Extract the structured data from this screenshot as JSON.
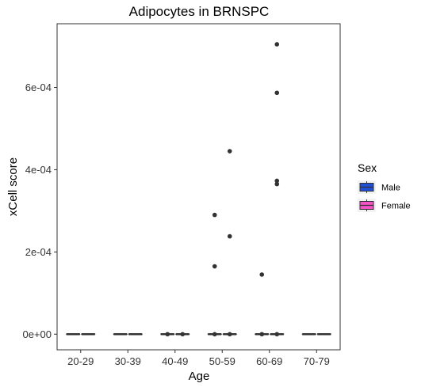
{
  "chart_data": {
    "type": "box",
    "title": "Adipocytes in BRNSPC",
    "xlabel": "Age",
    "ylabel": "xCell score",
    "categories": [
      "20-29",
      "30-39",
      "40-49",
      "50-59",
      "60-69",
      "70-79"
    ],
    "ylim": [
      -3.8e-05,
      0.000755
    ],
    "yticks": [
      {
        "value": 0,
        "label": "0e+00"
      },
      {
        "value": 0.0002,
        "label": "2e-04"
      },
      {
        "value": 0.0004,
        "label": "4e-04"
      },
      {
        "value": 0.0006,
        "label": "6e-04"
      }
    ],
    "grid": false,
    "legend": {
      "title": "Sex",
      "position": "right",
      "entries": [
        {
          "name": "Male",
          "color": "#1f4fd6"
        },
        {
          "name": "Female",
          "color": "#f552c8"
        }
      ]
    },
    "series": [
      {
        "name": "Male",
        "color": "#1f4fd6",
        "boxes": [
          {
            "category": "20-29",
            "min": 0,
            "q1": 0,
            "median": 0,
            "q3": 0,
            "max": 0,
            "outliers": []
          },
          {
            "category": "30-39",
            "min": 0,
            "q1": 0,
            "median": 0,
            "q3": 0,
            "max": 0,
            "outliers": []
          },
          {
            "category": "40-49",
            "min": 0,
            "q1": 0,
            "median": 0,
            "q3": 0,
            "max": 0,
            "outliers": [
              0
            ]
          },
          {
            "category": "50-59",
            "min": 0,
            "q1": 0,
            "median": 0,
            "q3": 0,
            "max": 0,
            "outliers": [
              0,
              0.000165,
              0.00029
            ]
          },
          {
            "category": "60-69",
            "min": 0,
            "q1": 0,
            "median": 0,
            "q3": 0,
            "max": 0,
            "outliers": [
              0,
              0.000145
            ]
          },
          {
            "category": "70-79",
            "min": 0,
            "q1": 0,
            "median": 0,
            "q3": 0,
            "max": 0,
            "outliers": []
          }
        ]
      },
      {
        "name": "Female",
        "color": "#f552c8",
        "boxes": [
          {
            "category": "20-29",
            "min": 0,
            "q1": 0,
            "median": 0,
            "q3": 0,
            "max": 0,
            "outliers": []
          },
          {
            "category": "30-39",
            "min": 0,
            "q1": 0,
            "median": 0,
            "q3": 0,
            "max": 0,
            "outliers": []
          },
          {
            "category": "40-49",
            "min": 0,
            "q1": 0,
            "median": 0,
            "q3": 0,
            "max": 0,
            "outliers": [
              0
            ]
          },
          {
            "category": "50-59",
            "min": 0,
            "q1": 0,
            "median": 0,
            "q3": 0,
            "max": 0,
            "outliers": [
              0,
              0.000238,
              0.000445
            ]
          },
          {
            "category": "60-69",
            "min": 0,
            "q1": 0,
            "median": 0,
            "q3": 0,
            "max": 0,
            "outliers": [
              0,
              0.000365,
              0.000373,
              0.000587,
              0.000705
            ]
          },
          {
            "category": "70-79",
            "min": 0,
            "q1": 0,
            "median": 0,
            "q3": 0,
            "max": 0,
            "outliers": []
          }
        ]
      }
    ]
  }
}
